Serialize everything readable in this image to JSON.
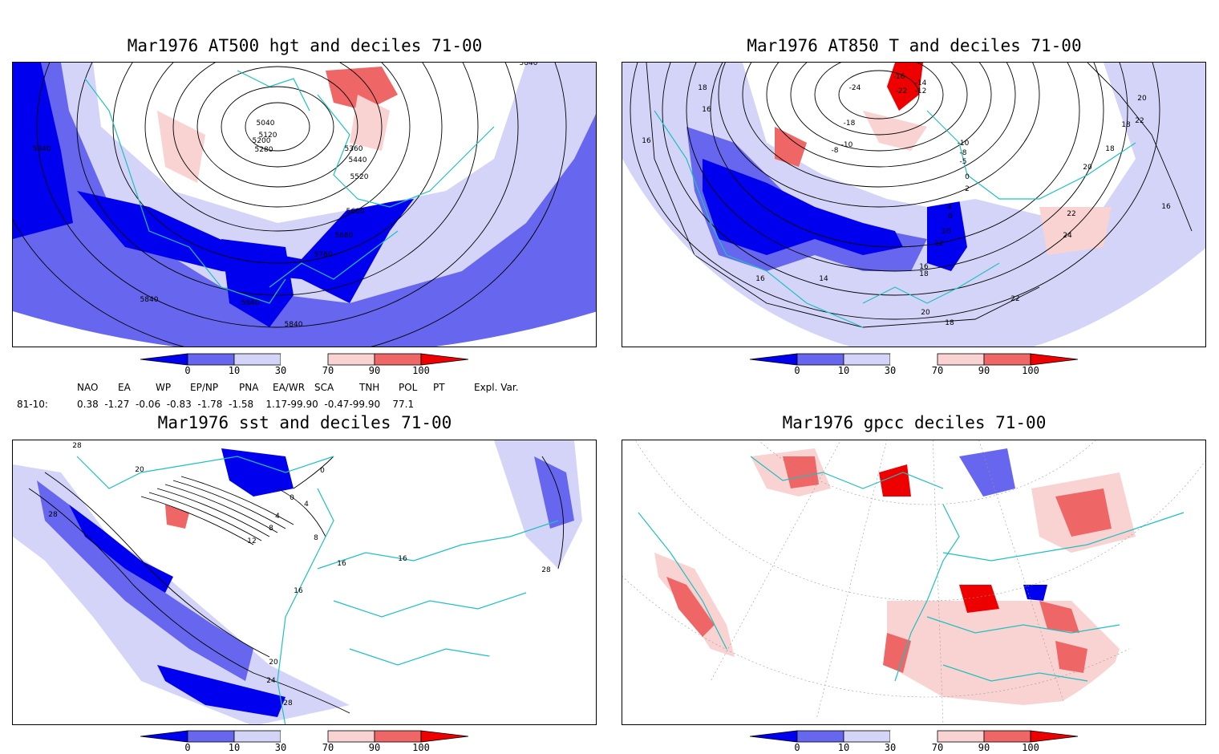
{
  "panels": [
    {
      "id": "p1",
      "title": "Mar1976 AT500 hgt and deciles 71-00",
      "contour_labels": [
        "5840",
        "5040",
        "5120",
        "5200",
        "5280",
        "5360",
        "5440",
        "5520",
        "5600",
        "5680",
        "5760",
        "5840",
        "5840",
        "5840",
        "5840"
      ]
    },
    {
      "id": "p2",
      "title": "Mar1976 AT850 T and deciles 71-00",
      "contour_labels": [
        "18",
        "16",
        "16",
        "-24",
        "-16",
        "-22",
        "-14",
        "-12",
        "-18",
        "-10",
        "-8",
        "-10",
        "-8",
        "-5",
        "0",
        "2",
        "22",
        "20",
        "18",
        "18",
        "20",
        "4",
        "8",
        "10",
        "12",
        "16",
        "18",
        "14",
        "16",
        "16",
        "22",
        "24",
        "22",
        "20",
        "18"
      ]
    },
    {
      "id": "p3",
      "title": "Mar1976 sst and deciles 71-00",
      "contour_labels": [
        "28",
        "20",
        "28",
        "0",
        "0",
        "4",
        "4",
        "8",
        "8",
        "12",
        "16",
        "16",
        "16",
        "20",
        "24",
        "28",
        "28"
      ]
    },
    {
      "id": "p4",
      "title": "Mar1976 gpcc deciles 71-00",
      "contour_labels": []
    }
  ],
  "colorbar": {
    "ticks": [
      "0",
      "10",
      "30",
      "70",
      "90",
      "100"
    ],
    "colors": {
      "strong_blue": "#0000ee",
      "mid_blue": "#6666ee",
      "light_blue": "#d4d4f8",
      "white": "#ffffff",
      "light_red": "#f9d2d2",
      "mid_red": "#ee6666",
      "strong_red": "#ee0000"
    }
  },
  "indices": {
    "headers": [
      "NAO",
      "EA",
      "WP",
      "EP/NP",
      "PNA",
      "EA/WR",
      "SCA",
      "TNH",
      "POL",
      "PT",
      "Expl. Var."
    ],
    "row_label": "81-10:",
    "values": "0.38  -1.27  -0.06  -0.83  -1.78  -1.58    1.17-99.90  -0.47-99.90    77.1"
  },
  "coast_color": "#20c0c0"
}
